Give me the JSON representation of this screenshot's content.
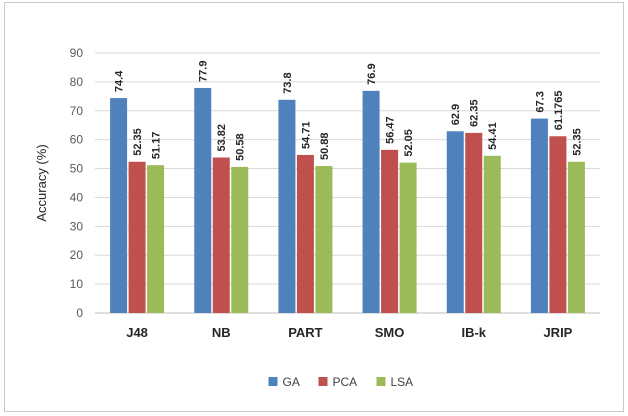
{
  "chart_data": {
    "type": "bar",
    "categories": [
      "J48",
      "NB",
      "PART",
      "SMO",
      "IB-k",
      "JRIP"
    ],
    "series": [
      {
        "name": "GA",
        "color": "#4f81bd",
        "values": [
          74.4,
          77.9,
          73.8,
          76.9,
          62.9,
          67.3
        ],
        "labels": [
          "74.4",
          "77.9",
          "73.8",
          "76.9",
          "62.9",
          "67.3"
        ]
      },
      {
        "name": "PCA",
        "color": "#c0504d",
        "values": [
          52.35,
          53.82,
          54.71,
          56.47,
          62.35,
          61.1765
        ],
        "labels": [
          "52.35",
          "53.82",
          "54.71",
          "56.47",
          "62.35",
          "61.1765"
        ]
      },
      {
        "name": "LSA",
        "color": "#9bbb59",
        "values": [
          51.17,
          50.58,
          50.88,
          52.05,
          54.41,
          52.35
        ],
        "labels": [
          "51.17",
          "50.58",
          "50.88",
          "52.05",
          "54.41",
          "52.35"
        ]
      }
    ],
    "ylabel": "Accuracy (%)",
    "xlabel": "",
    "ylim": [
      0,
      90
    ],
    "yticks": [
      "0",
      "10",
      "20",
      "30",
      "40",
      "50",
      "60",
      "70",
      "80",
      "90"
    ],
    "grid": true,
    "legend_position": "bottom"
  }
}
